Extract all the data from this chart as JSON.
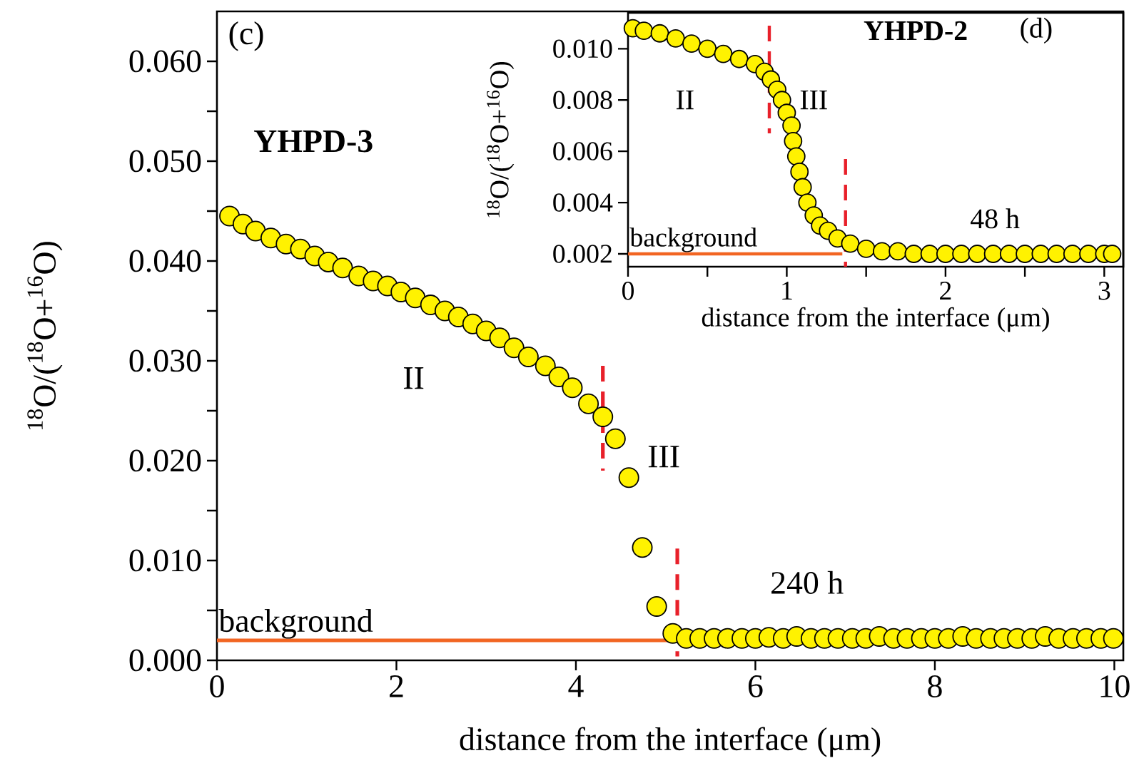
{
  "chart_data": [
    {
      "type": "scatter",
      "xlabel": "distance from the interface (μm)",
      "ylabel": "$^{18}$O/($^{18}$O+$^{16}$O)",
      "xlim": [
        0,
        10.1
      ],
      "xticks": [
        0,
        2,
        4,
        6,
        8,
        10
      ],
      "ylim": [
        0,
        0.065
      ],
      "yticks": [
        {
          "value": 0,
          "label": "0.000"
        },
        {
          "value": 0.005,
          "label": null
        },
        {
          "value": 0.01,
          "label": "0.010"
        },
        {
          "value": 0.015,
          "label": null
        },
        {
          "value": 0.02,
          "label": "0.020"
        },
        {
          "value": 0.025,
          "label": null
        },
        {
          "value": 0.03,
          "label": "0.030"
        },
        {
          "value": 0.035,
          "label": null
        },
        {
          "value": 0.04,
          "label": "0.040"
        },
        {
          "value": 0.045,
          "label": null
        },
        {
          "value": 0.05,
          "label": "0.050"
        },
        {
          "value": 0.055,
          "label": null
        },
        {
          "value": 0.06,
          "label": "0.060"
        }
      ],
      "annotations": [
        "(c)",
        "YHPD-3",
        "240 h",
        "II",
        "III"
      ],
      "series": [
        {
          "color": "#fff200",
          "x": [
            0.14,
            0.29,
            0.43,
            0.6,
            0.77,
            0.93,
            1.09,
            1.24,
            1.4,
            1.58,
            1.74,
            1.9,
            2.05,
            2.21,
            2.38,
            2.54,
            2.69,
            2.85,
            3.0,
            3.15,
            3.31,
            3.47,
            3.66,
            3.81,
            3.96,
            4.14,
            4.3,
            4.44,
            4.59,
            4.74,
            4.9,
            5.08,
            5.23,
            5.38,
            5.54,
            5.69,
            5.85,
            6.0,
            6.15,
            6.31,
            6.46,
            6.62,
            6.77,
            6.92,
            7.08,
            7.23,
            7.38,
            7.54,
            7.69,
            7.85,
            8.0,
            8.15,
            8.31,
            8.46,
            8.62,
            8.77,
            8.92,
            9.08,
            9.23,
            9.38,
            9.54,
            9.69,
            9.85,
            9.99
          ],
          "values": [
            0.0445,
            0.0437,
            0.043,
            0.0423,
            0.0417,
            0.0412,
            0.0405,
            0.0399,
            0.0393,
            0.0385,
            0.038,
            0.0375,
            0.0369,
            0.0363,
            0.0356,
            0.035,
            0.0344,
            0.0337,
            0.033,
            0.0323,
            0.0313,
            0.0304,
            0.0295,
            0.0284,
            0.0273,
            0.0257,
            0.0244,
            0.0222,
            0.0183,
            0.0113,
            0.0054,
            0.0027,
            0.0022,
            0.0022,
            0.0022,
            0.0022,
            0.0022,
            0.0022,
            0.0023,
            0.0022,
            0.0024,
            0.0022,
            0.0022,
            0.0022,
            0.0022,
            0.0022,
            0.0024,
            0.0022,
            0.0022,
            0.0022,
            0.0022,
            0.0022,
            0.0024,
            0.0022,
            0.0022,
            0.0022,
            0.0022,
            0.0022,
            0.0024,
            0.0022,
            0.0022,
            0.0022,
            0.0022,
            0.0022
          ]
        },
        {
          "type": "line",
          "marker": "none",
          "name": "background",
          "color": "#f26522",
          "x": [
            0,
            5.1
          ],
          "values": [
            0.002,
            0.002
          ]
        },
        {
          "type": "line",
          "marker": "none",
          "color": "#e8202a",
          "line_style": "dashed",
          "x": [
            4.3,
            4.3
          ],
          "values": [
            0.0295,
            0.019
          ]
        },
        {
          "type": "line",
          "marker": "none",
          "color": "#e8202a",
          "line_style": "dashed",
          "x": [
            5.13,
            5.13
          ],
          "values": [
            0.0112,
            0.0004
          ]
        }
      ]
    },
    {
      "type": "scatter",
      "xlabel": "distance from the interface (μm)",
      "ylabel": "$^{18}$O/($^{18}$O+$^{16}$O)",
      "xlim": [
        0,
        3.12
      ],
      "xticks": [
        0,
        {
          "value": 0.5,
          "label": null
        },
        1,
        {
          "value": 1.5,
          "label": null
        },
        2,
        {
          "value": 2.5,
          "label": null
        },
        3
      ],
      "ylim": [
        0.0015,
        0.0114
      ],
      "yticks": [
        {
          "value": 0.002,
          "label": "0.002"
        },
        {
          "value": 0.004,
          "label": "0.004"
        },
        {
          "value": 0.006,
          "label": "0.006"
        },
        {
          "value": 0.008,
          "label": "0.008"
        },
        {
          "value": 0.01,
          "label": "0.010"
        }
      ],
      "annotations": [
        "(d)",
        "YHPD-2",
        "48 h",
        "II",
        "III"
      ],
      "series": [
        {
          "color": "#fff200",
          "x": [
            0.03,
            0.1,
            0.2,
            0.3,
            0.4,
            0.5,
            0.6,
            0.7,
            0.8,
            0.86,
            0.9,
            0.94,
            0.97,
            1.0,
            1.03,
            1.04,
            1.06,
            1.08,
            1.1,
            1.13,
            1.17,
            1.21,
            1.26,
            1.32,
            1.4,
            1.5,
            1.6,
            1.7,
            1.8,
            1.9,
            2.0,
            2.1,
            2.2,
            2.3,
            2.4,
            2.5,
            2.6,
            2.7,
            2.8,
            2.9,
            3.0,
            3.05
          ],
          "values": [
            0.0108,
            0.0107,
            0.0106,
            0.0104,
            0.0102,
            0.01,
            0.0098,
            0.0096,
            0.0094,
            0.0091,
            0.0088,
            0.0084,
            0.008,
            0.0075,
            0.007,
            0.0064,
            0.0058,
            0.0052,
            0.0046,
            0.004,
            0.0035,
            0.0031,
            0.0029,
            0.0026,
            0.0024,
            0.0022,
            0.0021,
            0.0021,
            0.002,
            0.002,
            0.002,
            0.002,
            0.002,
            0.002,
            0.002,
            0.002,
            0.002,
            0.002,
            0.002,
            0.002,
            0.002,
            0.002
          ]
        },
        {
          "type": "line",
          "marker": "none",
          "name": "background",
          "color": "#f26522",
          "x": [
            0,
            1.35
          ],
          "values": [
            0.002,
            0.002
          ]
        },
        {
          "type": "line",
          "marker": "none",
          "color": "#e8202a",
          "line_style": "dashed",
          "x": [
            0.89,
            0.89
          ],
          "values": [
            0.0109,
            0.0067
          ]
        },
        {
          "type": "line",
          "marker": "none",
          "color": "#e8202a",
          "line_style": "dashed",
          "x": [
            1.37,
            1.37
          ],
          "values": [
            0.0057,
            0.0015
          ]
        }
      ]
    }
  ]
}
